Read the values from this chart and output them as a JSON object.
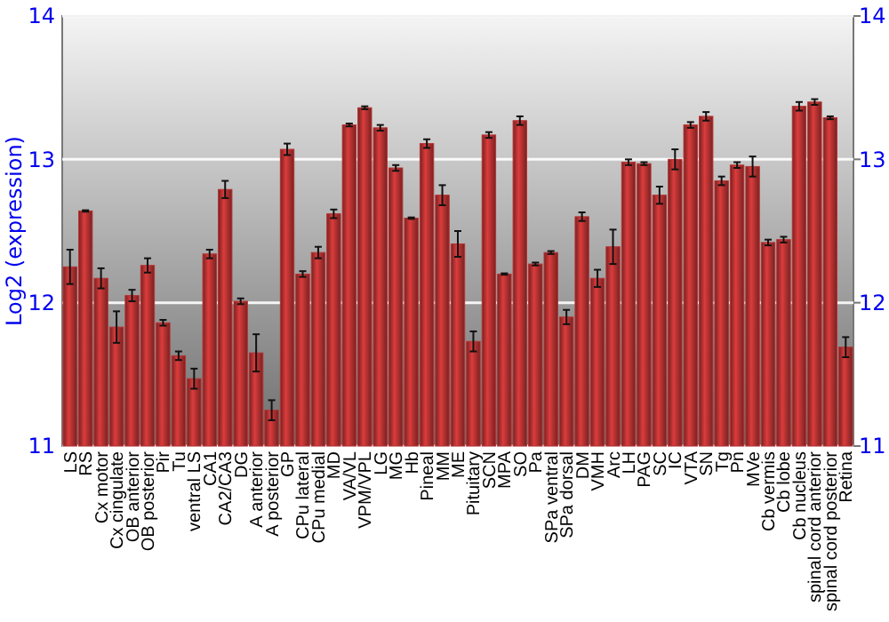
{
  "chart_data": {
    "type": "bar",
    "ylabel": "Log2 (expression)",
    "categories": [
      "LS",
      "RS",
      "Cx motor",
      "Cx cingulate",
      "OB anterior",
      "OB posterior",
      "Pir",
      "Tu",
      "ventral LS",
      "CA1",
      "CA2/CA3",
      "DG",
      "A anterior",
      "A posterior",
      "GP",
      "CPu lateral",
      "CPu medial",
      "MD",
      "VA/VL",
      "VPM/VPL",
      "LG",
      "MG",
      "Hb",
      "Pineal",
      "MM",
      "ME",
      "Pituitary",
      "SCN",
      "MPA",
      "SO",
      "Pa",
      "SPa ventral",
      "SPa dorsal",
      "DM",
      "VMH",
      "Arc",
      "LH",
      "PAG",
      "SC",
      "IC",
      "VTA",
      "SN",
      "Tg",
      "Pn",
      "MVe",
      "Cb vermis",
      "Cb lobe",
      "Cb nucleus",
      "spinal cord anterior",
      "spinal cord posterior",
      "Retina"
    ],
    "values": [
      12.25,
      12.64,
      12.17,
      11.83,
      12.05,
      12.26,
      11.86,
      11.63,
      11.47,
      12.34,
      12.79,
      12.01,
      11.65,
      11.25,
      13.07,
      12.2,
      12.35,
      12.62,
      13.24,
      13.36,
      13.22,
      12.94,
      12.59,
      13.11,
      12.75,
      12.41,
      11.73,
      13.17,
      12.2,
      13.27,
      12.27,
      12.35,
      11.9,
      12.6,
      12.17,
      12.39,
      12.98,
      12.97,
      12.75,
      13.0,
      13.24,
      13.3,
      12.85,
      12.96,
      12.95,
      12.42,
      12.44,
      13.37,
      13.4,
      13.29,
      11.69
    ],
    "errors": [
      0.12,
      0.005,
      0.07,
      0.11,
      0.04,
      0.05,
      0.02,
      0.03,
      0.07,
      0.03,
      0.06,
      0.02,
      0.13,
      0.07,
      0.04,
      0.02,
      0.04,
      0.03,
      0.01,
      0.01,
      0.02,
      0.02,
      0.005,
      0.03,
      0.07,
      0.09,
      0.07,
      0.02,
      0.005,
      0.03,
      0.01,
      0.01,
      0.05,
      0.03,
      0.06,
      0.12,
      0.02,
      0.01,
      0.06,
      0.07,
      0.02,
      0.03,
      0.03,
      0.02,
      0.07,
      0.02,
      0.02,
      0.03,
      0.02,
      0.01,
      0.07
    ],
    "color": "#b83232",
    "ylim": [
      11,
      14
    ],
    "yticks": [
      11,
      12,
      13,
      14
    ],
    "y2lim": [
      11,
      14
    ],
    "y2ticks": [
      11,
      12,
      13,
      14
    ],
    "grid": "y"
  }
}
